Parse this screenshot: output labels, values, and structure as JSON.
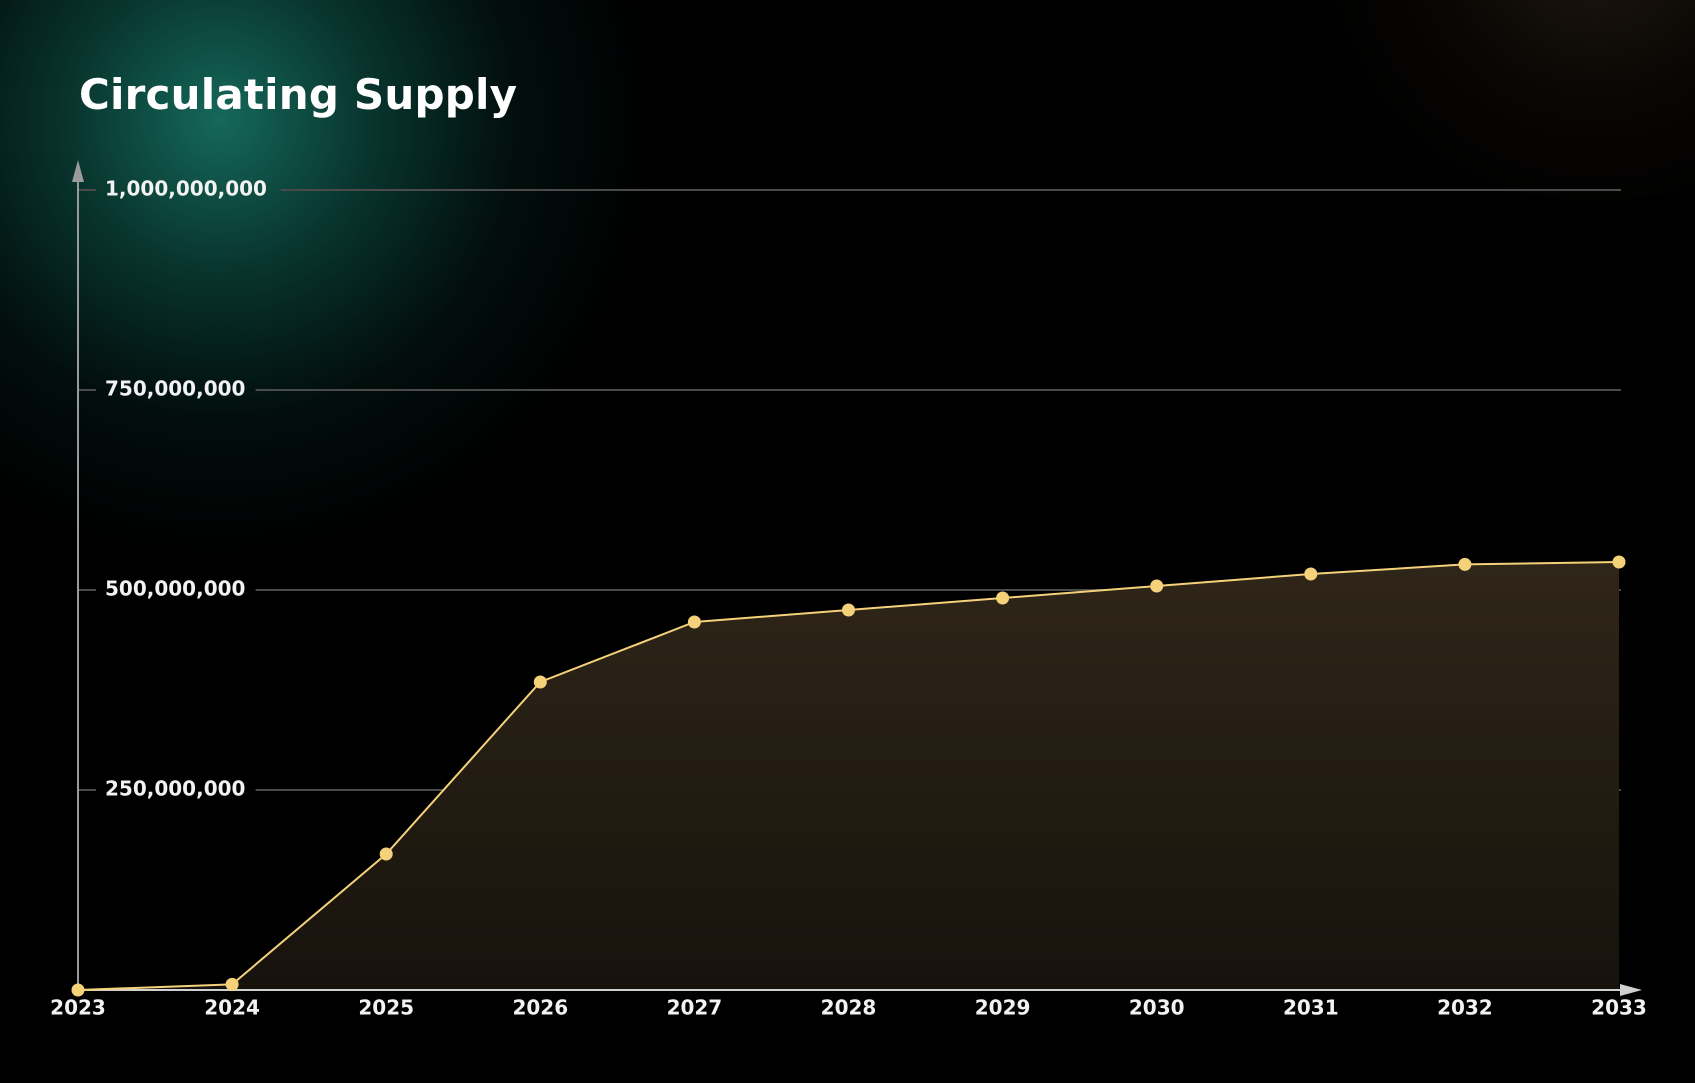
{
  "chart_data": {
    "type": "area",
    "title": "Circulating Supply",
    "xlabel": "",
    "ylabel": "",
    "categories": [
      "2023",
      "2024",
      "2025",
      "2026",
      "2027",
      "2028",
      "2029",
      "2030",
      "2031",
      "2032",
      "2033"
    ],
    "values": [
      0,
      7000000,
      170000000,
      385000000,
      460000000,
      475000000,
      490000000,
      505000000,
      520000000,
      532000000,
      535000000
    ],
    "ylim": [
      0,
      1000000000
    ],
    "y_ticks": [
      250000000,
      500000000,
      750000000,
      1000000000
    ],
    "y_tick_labels": [
      "250,000,000",
      "500,000,000",
      "750,000,000",
      "1,000,000,000"
    ],
    "grid": true,
    "legend": "none",
    "colors": {
      "line": "#f5d17a",
      "area_top": "#2f2618",
      "area_bottom": "#17120c",
      "grid": "#4a4a4a",
      "axis": "#9a9a9a",
      "text": "#f2f2f2",
      "glow": "#0f6e5e"
    }
  }
}
